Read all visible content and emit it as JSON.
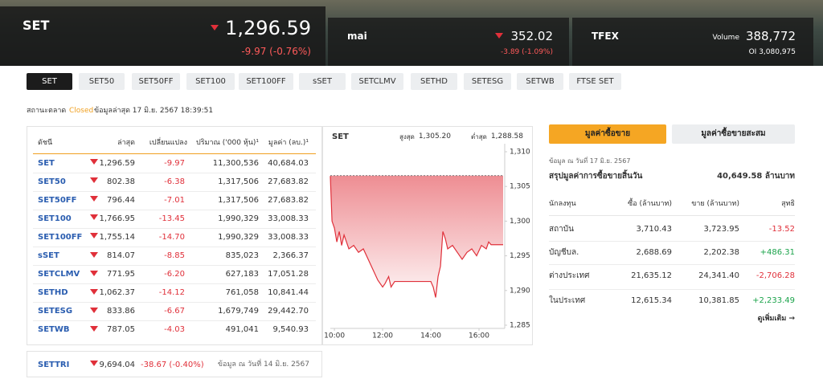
{
  "banner": [
    {
      "name": "SET",
      "value": "1,296.59",
      "change": "-9.97 (-0.76%)"
    },
    {
      "name": "mai",
      "value": "352.02",
      "change": "-3.89 (-1.09%)"
    },
    {
      "name": "TFEX",
      "volume_label": "Volume",
      "volume": "388,772",
      "oi": "OI 3,080,975"
    }
  ],
  "tabs": [
    "SET",
    "SET50",
    "SET50FF",
    "SET100",
    "SET100FF",
    "sSET",
    "SETCLMV",
    "SETHD",
    "SETESG",
    "SETWB",
    "FTSE SET"
  ],
  "status": {
    "label": "สถานะตลาด",
    "state": "Closed",
    "updated": "ข้อมูลล่าสุด 17 มิ.ย. 2567 18:39:51"
  },
  "index_table": {
    "columns": [
      "ดัชนี",
      "ล่าสุด",
      "เปลี่ยนแปลง",
      "ปริมาณ ('000 หุ้น)¹",
      "มูลค่า (ลบ.)¹"
    ],
    "rows": [
      [
        "SET",
        "1,296.59",
        "-9.97",
        "11,300,536",
        "40,684.03"
      ],
      [
        "SET50",
        "802.38",
        "-6.38",
        "1,317,506",
        "27,683.82"
      ],
      [
        "SET50FF",
        "796.44",
        "-7.01",
        "1,317,506",
        "27,683.82"
      ],
      [
        "SET100",
        "1,766.95",
        "-13.45",
        "1,990,329",
        "33,008.33"
      ],
      [
        "SET100FF",
        "1,755.14",
        "-14.70",
        "1,990,329",
        "33,008.33"
      ],
      [
        "sSET",
        "814.07",
        "-8.85",
        "835,023",
        "2,366.37"
      ],
      [
        "SETCLMV",
        "771.95",
        "-6.20",
        "627,183",
        "17,051.28"
      ],
      [
        "SETHD",
        "1,062.37",
        "-14.12",
        "761,058",
        "10,841.44"
      ],
      [
        "SETESG",
        "833.86",
        "-6.67",
        "1,679,749",
        "29,442.70"
      ],
      [
        "SETWB",
        "787.05",
        "-4.03",
        "491,041",
        "9,540.93"
      ]
    ]
  },
  "settri": {
    "name": "SETTRI",
    "value": "9,694.04",
    "change": "-38.67 (-0.40%)",
    "note": "ข้อมูล ณ วันที่ 14 มิ.ย. 2567"
  },
  "chart_data": {
    "type": "line",
    "title": "SET",
    "stats": [
      {
        "label": "สูงสุด",
        "value": "1,305.20"
      },
      {
        "label": "ต่ำสุด",
        "value": "1,288.58"
      }
    ],
    "x": [
      9.83,
      9.9,
      10.0,
      10.1,
      10.2,
      10.3,
      10.4,
      10.5,
      10.6,
      10.8,
      11.0,
      11.2,
      11.4,
      11.6,
      11.8,
      12.0,
      12.1,
      12.25,
      12.35,
      12.5,
      14.0,
      14.1,
      14.2,
      14.3,
      14.4,
      14.5,
      14.6,
      14.7,
      14.9,
      15.1,
      15.3,
      15.5,
      15.7,
      15.9,
      16.1,
      16.3,
      16.4,
      16.5,
      17.0
    ],
    "values": [
      1306.5,
      1300,
      1299,
      1297,
      1298.5,
      1296.5,
      1298,
      1297,
      1296,
      1296.5,
      1295.5,
      1296,
      1294.5,
      1293,
      1291.5,
      1290.5,
      1291,
      1292,
      1290.5,
      1291.3,
      1291.3,
      1290.5,
      1289,
      1292,
      1293.5,
      1298.5,
      1297.5,
      1296,
      1296.5,
      1295.5,
      1294.5,
      1295.5,
      1296,
      1295,
      1296.5,
      1296,
      1297,
      1296.6,
      1296.6
    ],
    "color": "#e0303a",
    "reference_line": 1306.56,
    "xlim": [
      9.83,
      17.0
    ],
    "xticks": [
      {
        "value": 10,
        "label": "10:00"
      },
      {
        "value": 12,
        "label": "12:00"
      },
      {
        "value": 14,
        "label": "14:00"
      },
      {
        "value": 16,
        "label": "16:00"
      }
    ],
    "ylim": [
      1285,
      1310
    ],
    "yticks": [
      {
        "value": 1285,
        "label": "1,285"
      },
      {
        "value": 1290,
        "label": "1,290"
      },
      {
        "value": 1295,
        "label": "1,295"
      },
      {
        "value": 1300,
        "label": "1,300"
      },
      {
        "value": 1305,
        "label": "1,305"
      },
      {
        "value": 1310,
        "label": "1,310"
      }
    ]
  },
  "trading": {
    "tabs": [
      "มูลค่าซื้อขาย",
      "มูลค่าซื้อขายสะสม"
    ],
    "date": "ข้อมูล ณ วันที่ 17 มิ.ย. 2567",
    "summary_label": "สรุปมูลค่าการซื้อขายสิ้นวัน",
    "summary_value": "40,649.58 ล้านบาท",
    "columns": [
      "นักลงทุน",
      "ซื้อ (ล้านบาท)",
      "ขาย (ล้านบาท)",
      "สุทธิ"
    ],
    "rows": [
      [
        "สถาบัน",
        "3,710.43",
        "3,723.95",
        "-13.52"
      ],
      [
        "บัญชีบล.",
        "2,688.69",
        "2,202.38",
        "+486.31"
      ],
      [
        "ต่างประเทศ",
        "21,635.12",
        "24,341.40",
        "-2,706.28"
      ],
      [
        "ในประเทศ",
        "12,615.34",
        "10,381.85",
        "+2,233.49"
      ]
    ],
    "more": "ดูเพิ่มเติม →"
  }
}
